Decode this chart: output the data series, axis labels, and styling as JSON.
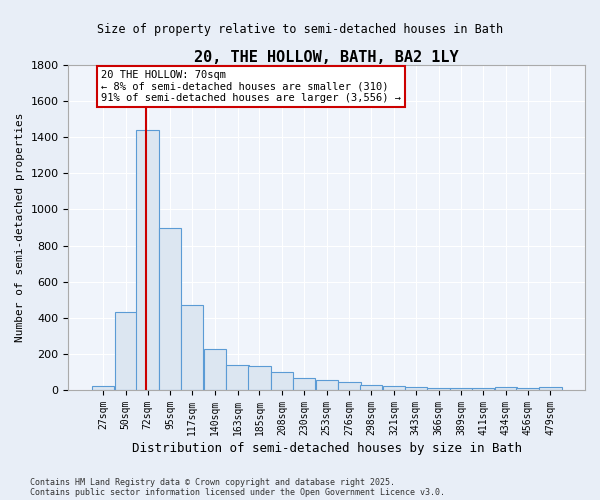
{
  "title": "20, THE HOLLOW, BATH, BA2 1LY",
  "subtitle": "Size of property relative to semi-detached houses in Bath",
  "xlabel": "Distribution of semi-detached houses by size in Bath",
  "ylabel": "Number of semi-detached properties",
  "footnote1": "Contains HM Land Registry data © Crown copyright and database right 2025.",
  "footnote2": "Contains public sector information licensed under the Open Government Licence v3.0.",
  "bar_edge_color": "#5b9bd5",
  "bar_face_color": "#dce6f1",
  "background_color": "#e8eef7",
  "plot_background": "#f0f4fb",
  "grid_color": "#ffffff",
  "vline_color": "#cc0000",
  "annotation_box_edge": "#cc0000",
  "annotation_text1": "20 THE HOLLOW: 70sqm",
  "annotation_text2": "← 8% of semi-detached houses are smaller (310)",
  "annotation_text3": "91% of semi-detached houses are larger (3,556) →",
  "property_size": 70,
  "bins": [
    27,
    50,
    72,
    95,
    117,
    140,
    163,
    185,
    208,
    230,
    253,
    276,
    298,
    321,
    343,
    366,
    389,
    411,
    434,
    456,
    479
  ],
  "counts": [
    25,
    430,
    1440,
    900,
    470,
    225,
    140,
    135,
    100,
    65,
    55,
    45,
    30,
    20,
    15,
    10,
    10,
    10,
    15,
    10,
    15
  ],
  "ylim": [
    0,
    1800
  ],
  "yticks": [
    0,
    200,
    400,
    600,
    800,
    1000,
    1200,
    1400,
    1600,
    1800
  ]
}
